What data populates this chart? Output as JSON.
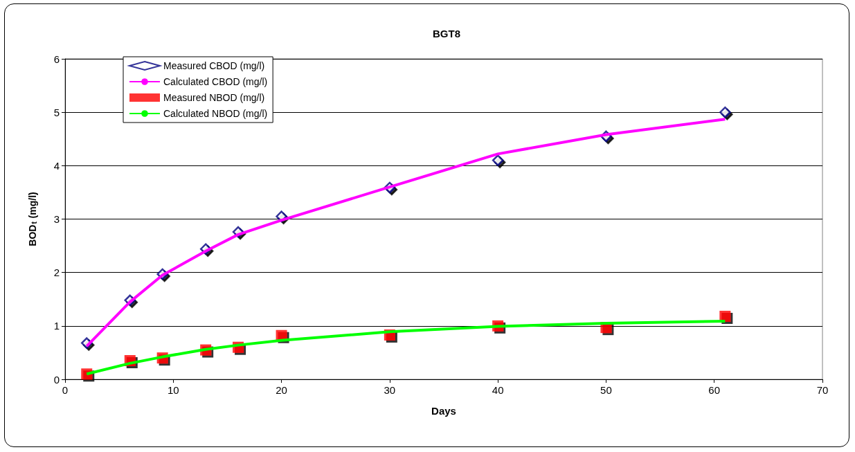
{
  "chart_data": {
    "type": "scatter",
    "title": "BGT8",
    "xlabel": "Days",
    "ylabel": "BOD$_{t}$ (mg/l)",
    "xlim": [
      0,
      70
    ],
    "xticks": [
      0,
      10,
      20,
      30,
      40,
      50,
      60,
      70
    ],
    "ylim": [
      0,
      6
    ],
    "yticks": [
      0,
      1,
      2,
      3,
      4,
      5,
      6
    ],
    "grid": "y",
    "legend": "top left",
    "series": [
      {
        "name": "Measured CBOD (mg/l)",
        "marker": "diamond",
        "color": "#000080",
        "x": [
          2,
          6,
          9,
          13,
          16,
          20,
          30,
          40,
          50,
          61
        ],
        "values": [
          0.68,
          1.48,
          1.97,
          2.44,
          2.76,
          3.05,
          3.59,
          4.1,
          4.55,
          5.0
        ]
      },
      {
        "name": "Calculated CBOD (mg/l)",
        "type": "line",
        "marker": "none",
        "line_style": "solid",
        "color": "#ff00ff",
        "x": [
          2,
          6,
          9,
          13,
          16,
          20,
          30,
          40,
          50,
          61
        ],
        "values": [
          0.62,
          1.45,
          1.95,
          2.4,
          2.71,
          2.98,
          3.6,
          4.22,
          4.58,
          4.87
        ]
      },
      {
        "name": "Measured NBOD (mg/l)",
        "marker": "square",
        "color": "#ff0000",
        "x": [
          2,
          6,
          9,
          13,
          16,
          20,
          30,
          40,
          50,
          61
        ],
        "values": [
          0.1,
          0.35,
          0.4,
          0.55,
          0.6,
          0.82,
          0.83,
          1.0,
          0.97,
          1.18
        ]
      },
      {
        "name": "Calculated NBOD (mg/l)",
        "type": "line",
        "marker": "none",
        "line_style": "solid",
        "color": "#00ff00",
        "x": [
          2,
          6,
          9,
          13,
          16,
          20,
          30,
          40,
          50,
          61
        ],
        "values": [
          0.1,
          0.3,
          0.42,
          0.56,
          0.64,
          0.73,
          0.89,
          0.99,
          1.05,
          1.09
        ]
      }
    ]
  }
}
